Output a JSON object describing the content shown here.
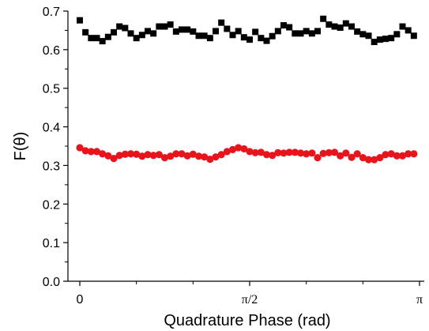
{
  "chart_data": {
    "type": "scatter",
    "title": "",
    "xlabel": "Quadrature Phase (rad)",
    "ylabel": "F(θ)",
    "xlim": [
      0,
      3.14159
    ],
    "ylim": [
      0.0,
      0.7
    ],
    "y_ticks": [
      0.0,
      0.1,
      0.2,
      0.3,
      0.4,
      0.5,
      0.6,
      0.7
    ],
    "y_tick_labels": [
      "0.0",
      "0.1",
      "0.2",
      "0.3",
      "0.4",
      "0.5",
      "0.6",
      "0.7"
    ],
    "x_ticks": [
      0,
      1.5708,
      3.14159
    ],
    "x_tick_labels": [
      "0",
      "π/2",
      "π"
    ],
    "grid": false,
    "legend": "none",
    "series": [
      {
        "marker": "square",
        "color": "#000000",
        "x": [
          0,
          0.0524,
          0.1047,
          0.1571,
          0.2094,
          0.2618,
          0.3142,
          0.3665,
          0.4189,
          0.4712,
          0.5236,
          0.576,
          0.6283,
          0.6807,
          0.733,
          0.7854,
          0.8378,
          0.8901,
          0.9425,
          0.9948,
          1.0472,
          1.0996,
          1.1519,
          1.2043,
          1.2566,
          1.309,
          1.3614,
          1.4137,
          1.4661,
          1.5184,
          1.5708,
          1.6232,
          1.6755,
          1.7279,
          1.7802,
          1.8326,
          1.885,
          1.9373,
          1.9897,
          2.042,
          2.0944,
          2.1468,
          2.1991,
          2.2515,
          2.3038,
          2.3562,
          2.4086,
          2.4609,
          2.5133,
          2.5656,
          2.618,
          2.6704,
          2.7227,
          2.7751,
          2.8274,
          2.8798,
          2.9322,
          2.9845,
          3.0369,
          3.0892
        ],
        "y": [
          0.676,
          0.645,
          0.63,
          0.63,
          0.622,
          0.633,
          0.645,
          0.66,
          0.656,
          0.642,
          0.63,
          0.638,
          0.648,
          0.642,
          0.66,
          0.66,
          0.665,
          0.647,
          0.652,
          0.652,
          0.647,
          0.636,
          0.636,
          0.63,
          0.648,
          0.67,
          0.654,
          0.638,
          0.648,
          0.632,
          0.626,
          0.646,
          0.63,
          0.623,
          0.635,
          0.648,
          0.663,
          0.658,
          0.642,
          0.642,
          0.648,
          0.642,
          0.648,
          0.68,
          0.665,
          0.66,
          0.657,
          0.668,
          0.66,
          0.647,
          0.64,
          0.636,
          0.62,
          0.626,
          0.628,
          0.63,
          0.64,
          0.66,
          0.65,
          0.636
        ]
      },
      {
        "marker": "circle",
        "color": "#e8141c",
        "x": [
          0,
          0.0524,
          0.1047,
          0.1571,
          0.2094,
          0.2618,
          0.3142,
          0.3665,
          0.4189,
          0.4712,
          0.5236,
          0.576,
          0.6283,
          0.6807,
          0.733,
          0.7854,
          0.8378,
          0.8901,
          0.9425,
          0.9948,
          1.0472,
          1.0996,
          1.1519,
          1.2043,
          1.2566,
          1.309,
          1.3614,
          1.4137,
          1.4661,
          1.5184,
          1.5708,
          1.6232,
          1.6755,
          1.7279,
          1.7802,
          1.8326,
          1.885,
          1.9373,
          1.9897,
          2.042,
          2.0944,
          2.1468,
          2.1991,
          2.2515,
          2.3038,
          2.3562,
          2.4086,
          2.4609,
          2.5133,
          2.5656,
          2.618,
          2.6704,
          2.7227,
          2.7751,
          2.8274,
          2.8798,
          2.9322,
          2.9845,
          3.0369,
          3.0892
        ],
        "y": [
          0.346,
          0.338,
          0.336,
          0.336,
          0.33,
          0.325,
          0.318,
          0.326,
          0.329,
          0.33,
          0.329,
          0.324,
          0.328,
          0.326,
          0.328,
          0.32,
          0.324,
          0.33,
          0.33,
          0.325,
          0.329,
          0.324,
          0.322,
          0.316,
          0.322,
          0.328,
          0.336,
          0.341,
          0.346,
          0.343,
          0.336,
          0.333,
          0.334,
          0.328,
          0.326,
          0.333,
          0.332,
          0.334,
          0.334,
          0.332,
          0.33,
          0.332,
          0.32,
          0.331,
          0.333,
          0.334,
          0.325,
          0.332,
          0.321,
          0.33,
          0.32,
          0.315,
          0.315,
          0.32,
          0.328,
          0.33,
          0.325,
          0.325,
          0.33,
          0.33
        ]
      }
    ]
  }
}
